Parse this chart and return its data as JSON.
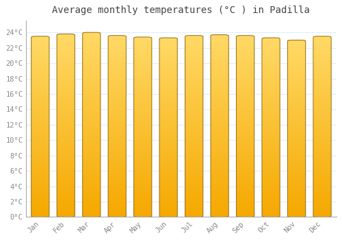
{
  "months": [
    "Jan",
    "Feb",
    "Mar",
    "Apr",
    "May",
    "Jun",
    "Jul",
    "Aug",
    "Sep",
    "Oct",
    "Nov",
    "Dec"
  ],
  "values": [
    23.5,
    23.8,
    24.0,
    23.6,
    23.4,
    23.3,
    23.6,
    23.7,
    23.6,
    23.3,
    23.0,
    23.5
  ],
  "bar_color_bottom": "#F5A800",
  "bar_color_top": "#FFD966",
  "bar_edge_color": "#A07820",
  "background_color": "#FFFFFF",
  "plot_bg_color": "#FFFFFF",
  "grid_color": "#DDEEFF",
  "title": "Average monthly temperatures (°C ) in Padilla",
  "title_fontsize": 10,
  "title_color": "#444444",
  "yticks": [
    0,
    2,
    4,
    6,
    8,
    10,
    12,
    14,
    16,
    18,
    20,
    22,
    24
  ],
  "ylim": [
    0,
    25.5
  ],
  "tick_label_color": "#888888",
  "axis_color": "#AAAAAA",
  "bar_width": 0.7
}
